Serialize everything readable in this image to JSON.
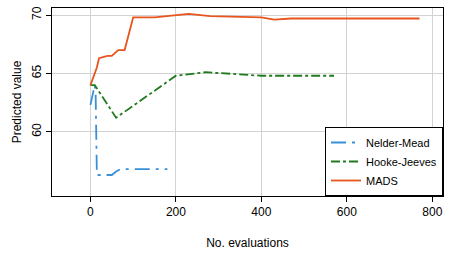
{
  "chart_data": {
    "type": "line",
    "x_label": "No. evaluations",
    "y_label": "Predicted value",
    "xlim": [
      -90,
      825
    ],
    "ylim": [
      54.5,
      70.6
    ],
    "xticks": [
      0,
      200,
      400,
      600,
      800
    ],
    "yticks": [
      60,
      65,
      70
    ],
    "grid": true,
    "legend": "bottom right",
    "series": [
      {
        "name": "Nelder-Mead",
        "color": "#3a8fd9",
        "line_style": "longdashdot",
        "x": [
          0,
          10,
          12,
          15,
          50,
          60,
          70,
          180
        ],
        "values": [
          62.3,
          64,
          63.5,
          56.3,
          56.3,
          56.6,
          56.8,
          56.8
        ]
      },
      {
        "name": "Hooke-Jeeves",
        "color": "#1f7a1f",
        "line_style": "dashdot",
        "x": [
          0,
          10,
          60,
          200,
          270,
          400,
          570
        ],
        "values": [
          64,
          64,
          61.2,
          64.8,
          65.1,
          64.8,
          64.8
        ]
      },
      {
        "name": "MADS",
        "color": "#e8541e",
        "line_style": "solid",
        "x": [
          0,
          15,
          20,
          40,
          50,
          65,
          80,
          100,
          150,
          230,
          280,
          400,
          430,
          470,
          770
        ],
        "values": [
          64,
          65.5,
          66.3,
          66.5,
          66.5,
          67,
          67,
          69.8,
          69.8,
          70.1,
          69.9,
          69.8,
          69.6,
          69.7,
          69.7
        ]
      }
    ]
  }
}
